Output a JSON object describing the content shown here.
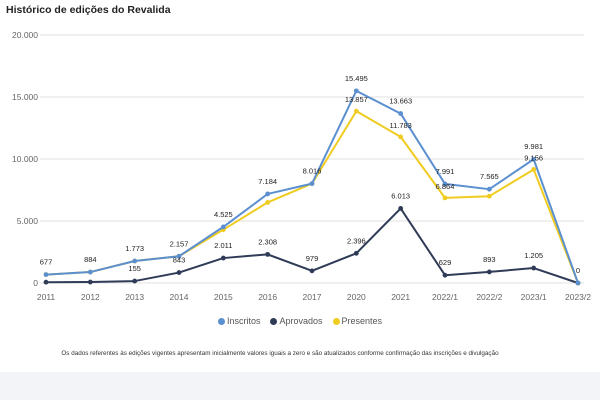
{
  "title": "Histórico de edições do Revalida",
  "footnote": "Os dados referentes às edições vigentes apresentam inicialmente valores iguais a zero e são atualizados conforme confirmação das inscrições e divulgação",
  "colors": {
    "inscritos": "#5b8fd0",
    "aprovados": "#2f3b57",
    "presentes": "#f0cc21",
    "grid": "#e2e2e2",
    "axis_text": "#666666"
  },
  "chart_data": {
    "type": "line",
    "title": "Histórico de edições do Revalida",
    "xlabel": "",
    "ylabel": "",
    "ylim": [
      0,
      20000
    ],
    "yticks": [
      0,
      5000,
      10000,
      15000,
      20000
    ],
    "ytick_labels": [
      "0",
      "5.000",
      "10.000",
      "15.000",
      "20.000"
    ],
    "categories": [
      "2011",
      "2012",
      "2013",
      "2014",
      "2015",
      "2016",
      "2017",
      "2020",
      "2021",
      "2022/1",
      "2022/2",
      "2023/1",
      "2023/2"
    ],
    "grid": true,
    "legend": "bottom-center",
    "series": [
      {
        "name": "Inscritos",
        "color": "#5b8fd0",
        "values": [
          677,
          884,
          1773,
          2157,
          4525,
          7184,
          8016,
          15495,
          13663,
          7991,
          7565,
          9981,
          0
        ],
        "labels": [
          "677",
          "884",
          "1.773",
          "2.157",
          "4.525",
          "7.184",
          "8.016",
          "15.495",
          "13.663",
          "7.991",
          "7.565",
          "9.981",
          "0"
        ]
      },
      {
        "name": "Aprovados",
        "color": "#2f3b57",
        "values": [
          65,
          77,
          155,
          843,
          2011,
          2308,
          979,
          2396,
          6013,
          629,
          893,
          1205,
          0
        ],
        "labels": [
          "",
          "",
          "155",
          "843",
          "2.011",
          "2.308",
          "979",
          "2.396",
          "6.013",
          "629",
          "893",
          "1.205",
          ""
        ]
      },
      {
        "name": "Presentes",
        "color": "#f0cc21",
        "values": [
          677,
          884,
          1773,
          2157,
          4300,
          6500,
          8016,
          13857,
          11783,
          6864,
          7000,
          9156,
          0
        ],
        "labels": [
          "",
          "",
          "",
          "",
          "",
          "",
          "",
          "13.857",
          "11.783",
          "6.864",
          "",
          "9.156",
          ""
        ]
      }
    ]
  }
}
